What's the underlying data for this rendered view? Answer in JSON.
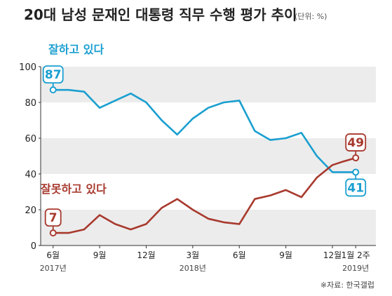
{
  "header": {
    "title": "20대 남성 문재인 대통령 직무 수행 평가 추이",
    "unit": "(단위: %)"
  },
  "source": "※자료: 한국갤럽",
  "colors": {
    "approve": "#1a9fd0",
    "disapprove": "#a8392d",
    "band": "#ececec"
  },
  "chart_data": {
    "type": "line",
    "x": [
      1,
      2,
      3,
      4,
      5,
      6,
      7,
      8,
      9,
      10,
      11,
      12,
      13,
      14,
      15,
      16,
      17,
      18,
      19,
      20,
      21
    ],
    "xlim": [
      0.2,
      21.8
    ],
    "ylim": [
      0,
      100
    ],
    "yticks": [
      0,
      20,
      40,
      60,
      80,
      100
    ],
    "xticks": [
      {
        "x": 1,
        "label": "6월"
      },
      {
        "x": 4,
        "label": "9월"
      },
      {
        "x": 7,
        "label": "12월"
      },
      {
        "x": 10,
        "label": "3월"
      },
      {
        "x": 13,
        "label": "6월"
      },
      {
        "x": 16,
        "label": "9월"
      },
      {
        "x": 19,
        "label": "12월"
      },
      {
        "x": 20.5,
        "label": "1월 2주"
      }
    ],
    "year_labels": [
      {
        "x": 1,
        "label": "2017년"
      },
      {
        "x": 10,
        "label": "2018년"
      },
      {
        "x": 20.5,
        "label": "2019년"
      }
    ],
    "grid_bands": [
      [
        0,
        20
      ],
      [
        40,
        60
      ],
      [
        80,
        100
      ]
    ],
    "series": [
      {
        "name": "잘하고 있다",
        "color": "#1a9fd0",
        "values": [
          87,
          87,
          86,
          77,
          81,
          85,
          80,
          70,
          62,
          71,
          77,
          80,
          81,
          64,
          59,
          60,
          63,
          50,
          41,
          41,
          41
        ],
        "x_values": [
          1,
          2,
          3,
          4,
          5,
          6,
          7,
          8,
          9,
          10,
          11,
          12,
          13,
          14,
          15,
          16,
          17,
          18,
          19,
          19.7,
          20.5
        ],
        "callouts": [
          {
            "index": 0,
            "text": "87",
            "position": "above"
          },
          {
            "index": 20,
            "text": "41",
            "position": "below"
          }
        ]
      },
      {
        "name": "잘못하고 있다",
        "color": "#a8392d",
        "values": [
          7,
          7,
          9,
          17,
          12,
          9,
          12,
          21,
          26,
          20,
          15,
          13,
          12,
          26,
          28,
          31,
          27,
          38,
          45,
          47,
          49
        ],
        "x_values": [
          1,
          2,
          3,
          4,
          5,
          6,
          7,
          8,
          9,
          10,
          11,
          12,
          13,
          14,
          15,
          16,
          17,
          18,
          19,
          19.7,
          20.5
        ],
        "callouts": [
          {
            "index": 0,
            "text": "7",
            "position": "above"
          },
          {
            "index": 20,
            "text": "49",
            "position": "above"
          }
        ]
      }
    ]
  }
}
